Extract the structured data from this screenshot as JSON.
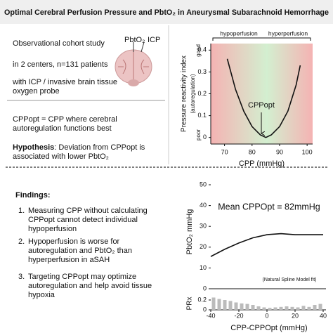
{
  "title": "Optimal Cerebral Perfusion Pressure and PbtO₂ in Aneurysmal Subarachnoid Hemorrhage",
  "study": [
    "Observational cohort study",
    "in 2 centers, n=131 patients",
    "with ICP / invasive brain tissue oxygen probe"
  ],
  "image_labels": [
    "PbtO₂",
    "ICP"
  ],
  "definition": "CPPopt = CPP where cerebral autoregulation functions best",
  "hypothesis": {
    "label": "Hypothesis",
    "text": ": Deviation from CPPopt is associated with lower PbtO₂"
  },
  "findings": {
    "heading": "Findings:",
    "items": [
      {
        "number": "1.",
        "text": "Measuring CPP without calculating CPPopt cannot detect individual hypoperfusion"
      },
      {
        "number": "2.",
        "text": "Hypoperfusion is worse for autoregulation and PbtO₂ than hyperperfusion in aSAH"
      },
      {
        "number": "3.",
        "text": "Targeting CPPopt may optimize autoregulation and help avoid tissue hypoxia"
      }
    ]
  },
  "chart_data": [
    {
      "type": "line",
      "xlabel": "CPP (mmHg)",
      "ylabel": "Pressure reactivity index",
      "ylabel_sub": "(autoregulation)",
      "annotations": {
        "left": "hypoperfusion",
        "right": "hyperperfusion",
        "optimum": "CPPopt",
        "top": "good",
        "bottom": "poor"
      },
      "x": [
        71,
        74,
        77,
        80,
        83,
        85,
        87,
        90,
        93,
        96,
        97.5
      ],
      "values": [
        0.36,
        0.22,
        0.12,
        0.05,
        0.012,
        0.0,
        0.012,
        0.05,
        0.12,
        0.24,
        0.33
      ],
      "color": "#111111",
      "xlim": [
        65,
        102
      ],
      "xticks": [
        70,
        80,
        90,
        100
      ],
      "ylim": [
        -0.03,
        0.43
      ],
      "yticks": [
        0,
        0.1,
        0.2,
        0.3,
        0.4
      ]
    },
    {
      "type": "line",
      "xlabel": "CPP-CPPOpt (mmHg)",
      "ylabel": "PbtO₂ mmHg",
      "y2label": "PRx",
      "annotations": {
        "mean": "Mean CPPOpt = 82mmHg",
        "model": "(Natural Spline Model fit)"
      },
      "series": [
        {
          "type": "line",
          "color": "#111111",
          "x": [
            -40,
            -30,
            -20,
            -10,
            0,
            10,
            20,
            30,
            40
          ],
          "values": [
            15.5,
            19,
            22,
            24.5,
            26,
            26.5,
            26,
            26,
            26
          ]
        },
        {
          "type": "bar",
          "axis": "y2",
          "color": "#bbbbbb",
          "x": [
            -38,
            -34,
            -30,
            -26,
            -22,
            -18,
            -14,
            -10,
            -6,
            -2,
            2,
            6,
            10,
            14,
            18,
            22,
            26,
            30,
            34,
            38
          ],
          "values": [
            0.25,
            0.22,
            0.2,
            0.18,
            0.15,
            0.13,
            0.12,
            0.1,
            0.07,
            0.05,
            0.04,
            0.05,
            0.06,
            0.07,
            0.06,
            0.05,
            0.08,
            0.06,
            0.1,
            0.12
          ]
        }
      ],
      "xlim": [
        -40,
        42
      ],
      "xticks": [
        -40,
        -20,
        0,
        20,
        40
      ],
      "ylim": [
        0,
        50
      ],
      "yticks": [
        0,
        10,
        20,
        30,
        40,
        50
      ],
      "y2lim": [
        0,
        0.3
      ],
      "y2ticks": [
        0,
        0.2
      ]
    }
  ]
}
